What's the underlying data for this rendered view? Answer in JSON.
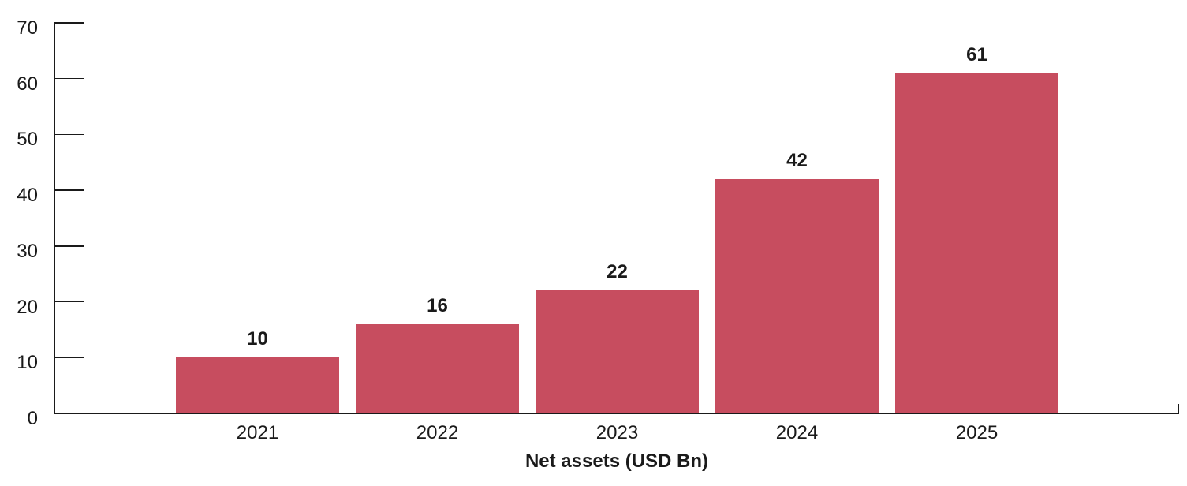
{
  "chart_data": {
    "type": "bar",
    "categories": [
      "2021",
      "2022",
      "2023",
      "2024",
      "2025"
    ],
    "values": [
      10,
      16,
      22,
      42,
      61
    ],
    "title": "",
    "xlabel": "Net assets (USD Bn)",
    "ylabel": "",
    "ylim": [
      0,
      70
    ],
    "y_ticks": [
      0,
      10,
      20,
      30,
      40,
      50,
      60,
      70
    ],
    "value_labels": [
      "10",
      "16",
      "22",
      "42",
      "61"
    ],
    "grid": false,
    "legend": "none",
    "colors": {
      "bar": "#C74D5F",
      "axis": "#1a1a1a",
      "text": "#1a1a1a"
    }
  }
}
